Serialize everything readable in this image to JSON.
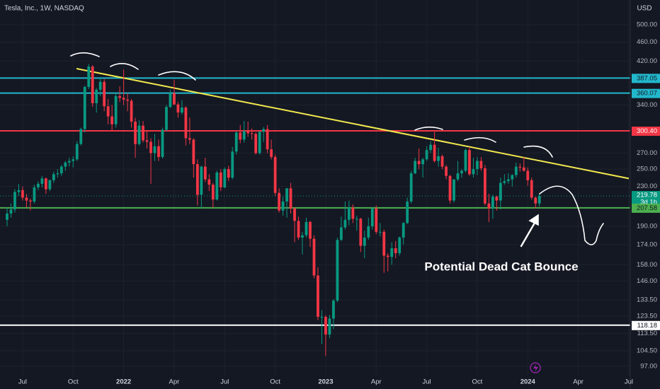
{
  "chart_data": {
    "type": "candlestick",
    "title": "Tesla, Inc., 1W, NASDAQ",
    "currency": "USD",
    "countdown": "3d 1h",
    "annotation": "Potential Dead Cat Bounce",
    "log_scale": true,
    "grid": true,
    "up_color": "#089981",
    "down_color": "#f23645",
    "categories": [
      null,
      null,
      null,
      null,
      "Jul",
      null,
      null,
      null,
      null,
      null,
      null,
      null,
      null,
      null,
      null,
      null,
      null,
      "Oct",
      null,
      null,
      null,
      null,
      null,
      null,
      null,
      null,
      null,
      null,
      null,
      null,
      "2022",
      null,
      null,
      null,
      null,
      null,
      null,
      null,
      null,
      null,
      null,
      null,
      null,
      "Apr",
      null,
      null,
      null,
      null,
      null,
      null,
      null,
      null,
      null,
      null,
      null,
      null,
      "Jul",
      null,
      null,
      null,
      null,
      null,
      null,
      null,
      null,
      null,
      null,
      null,
      null,
      "Oct",
      null,
      null,
      null,
      null,
      null,
      null,
      null,
      null,
      null,
      null,
      null,
      null,
      "2023",
      null,
      null,
      null,
      null,
      null,
      null,
      null,
      null,
      null,
      null,
      null,
      null,
      "Apr",
      null,
      null,
      null,
      null,
      null,
      null,
      null,
      null,
      null,
      null,
      null,
      null,
      "Jul",
      null,
      null,
      null,
      null,
      null,
      null,
      null,
      null,
      null,
      null,
      null,
      null,
      "Oct",
      null,
      null,
      null,
      null,
      null,
      null,
      null,
      null,
      null,
      null,
      null,
      null,
      "2024",
      null,
      null,
      null,
      null,
      null,
      null,
      null,
      null,
      null,
      null,
      null,
      null,
      "Apr",
      null,
      null,
      null,
      null,
      null,
      null,
      null,
      null,
      null,
      null,
      null,
      null,
      "Jul"
    ],
    "open": [
      196,
      202,
      206,
      224,
      226,
      218,
      215,
      214,
      229,
      233,
      239,
      227,
      237,
      244,
      245,
      253,
      258,
      260,
      262,
      282,
      303,
      371,
      409,
      343,
      366,
      380,
      338,
      322,
      310,
      355,
      352,
      349,
      347,
      314,
      282,
      308,
      287,
      285,
      270,
      279,
      265,
      302,
      337,
      360,
      341,
      328,
      336,
      290,
      288,
      256,
      221,
      253,
      238,
      232,
      216,
      246,
      229,
      250,
      240,
      272,
      298,
      288,
      300,
      297,
      296,
      270,
      299,
      303,
      275,
      265,
      223,
      205,
      214,
      228,
      207,
      195,
      180,
      182,
      194,
      179,
      150,
      123,
      123,
      113,
      122,
      133,
      178,
      189,
      196,
      208,
      197,
      197,
      173,
      180,
      190,
      207,
      185,
      185,
      165,
      164,
      171,
      167,
      180,
      193,
      214,
      245,
      260,
      256,
      262,
      274,
      281,
      260,
      266,
      253,
      242,
      215,
      238,
      245,
      248,
      274,
      244,
      250,
      260,
      251,
      212,
      207,
      219,
      215,
      234,
      236,
      238,
      243,
      253,
      252,
      248,
      237,
      218,
      212,
      null,
      null,
      null,
      null,
      null,
      null,
      null,
      null,
      null,
      null,
      null,
      null,
      null,
      null,
      null,
      null,
      null,
      null,
      null,
      null,
      null,
      null,
      null
    ],
    "high": [
      208,
      212,
      227,
      233,
      230,
      222,
      217,
      232,
      236,
      242,
      240,
      238,
      247,
      250,
      255,
      260,
      264,
      266,
      286,
      305,
      373,
      414,
      412,
      369,
      389,
      385,
      350,
      340,
      360,
      372,
      403,
      360,
      350,
      320,
      316,
      315,
      300,
      290,
      296,
      288,
      305,
      340,
      366,
      384,
      345,
      348,
      338,
      320,
      290,
      262,
      254,
      264,
      244,
      234,
      248,
      250,
      252,
      254,
      278,
      300,
      309,
      315,
      314,
      304,
      298,
      300,
      306,
      309,
      288,
      268,
      228,
      219,
      228,
      234,
      208,
      199,
      185,
      198,
      195,
      182,
      156,
      127,
      124,
      124,
      134,
      180,
      199,
      214,
      215,
      211,
      200,
      198,
      186,
      198,
      208,
      210,
      193,
      187,
      167,
      176,
      177,
      181,
      194,
      218,
      248,
      264,
      276,
      264,
      279,
      286,
      299,
      277,
      268,
      255,
      243,
      238,
      260,
      250,
      276,
      278,
      264,
      265,
      265,
      255,
      222,
      221,
      220,
      240,
      244,
      245,
      244,
      258,
      257,
      265,
      252,
      240,
      219,
      222,
      null,
      null,
      null,
      null,
      null,
      null,
      null,
      null,
      null,
      null,
      null,
      null,
      null,
      null,
      null,
      null,
      null,
      null,
      null,
      null,
      null,
      null,
      null
    ],
    "low": [
      190,
      198,
      203,
      220,
      215,
      208,
      205,
      212,
      226,
      229,
      222,
      225,
      234,
      240,
      242,
      248,
      253,
      252,
      260,
      280,
      298,
      367,
      337,
      328,
      355,
      330,
      310,
      300,
      305,
      345,
      340,
      330,
      305,
      264,
      280,
      284,
      276,
      233,
      260,
      260,
      263,
      300,
      335,
      340,
      320,
      325,
      280,
      282,
      240,
      210,
      207,
      235,
      225,
      208,
      215,
      225,
      228,
      236,
      238,
      268,
      283,
      284,
      292,
      288,
      268,
      268,
      285,
      270,
      262,
      220,
      203,
      200,
      198,
      202,
      176,
      178,
      166,
      180,
      172,
      148,
      121,
      108,
      102,
      111,
      116,
      132,
      177,
      187,
      191,
      193,
      186,
      168,
      163,
      178,
      187,
      183,
      181,
      152,
      153,
      158,
      163,
      165,
      174,
      192,
      212,
      244,
      250,
      240,
      260,
      270,
      258,
      253,
      250,
      238,
      212,
      213,
      236,
      240,
      246,
      242,
      240,
      243,
      248,
      210,
      194,
      197,
      205,
      206,
      232,
      233,
      230,
      240,
      247,
      247,
      231,
      216,
      207,
      209,
      null,
      null,
      null,
      null,
      null,
      null,
      null,
      null,
      null,
      null,
      null,
      null,
      null,
      null,
      null,
      null,
      null,
      null,
      null,
      null,
      null,
      null,
      null
    ],
    "close": [
      202,
      206,
      224,
      226,
      218,
      215,
      214,
      229,
      233,
      239,
      227,
      237,
      244,
      245,
      253,
      258,
      260,
      262,
      282,
      303,
      371,
      409,
      343,
      366,
      380,
      338,
      322,
      310,
      355,
      352,
      349,
      347,
      314,
      282,
      308,
      287,
      285,
      270,
      279,
      265,
      302,
      337,
      360,
      341,
      328,
      336,
      290,
      288,
      256,
      221,
      253,
      238,
      232,
      216,
      246,
      229,
      250,
      240,
      272,
      298,
      288,
      300,
      297,
      296,
      270,
      299,
      303,
      275,
      265,
      223,
      205,
      214,
      228,
      207,
      195,
      180,
      182,
      194,
      179,
      150,
      123,
      123,
      113,
      122,
      133,
      178,
      189,
      196,
      208,
      197,
      197,
      173,
      180,
      190,
      207,
      185,
      185,
      165,
      164,
      171,
      167,
      180,
      193,
      214,
      245,
      260,
      256,
      262,
      274,
      281,
      260,
      266,
      253,
      242,
      215,
      238,
      245,
      248,
      274,
      244,
      250,
      260,
      251,
      212,
      207,
      219,
      215,
      234,
      236,
      238,
      243,
      253,
      252,
      248,
      237,
      218,
      212,
      219.78,
      null,
      null,
      null,
      null,
      null,
      null,
      null,
      null,
      null,
      null,
      null,
      null,
      null,
      null,
      null,
      null,
      null,
      null,
      null,
      null,
      null,
      null,
      null
    ],
    "ylim": [
      87,
      563
    ],
    "yticks": [
      {
        "value": 97,
        "label": "97.00"
      },
      {
        "value": 104.5,
        "label": "104.50"
      },
      {
        "value": 113.5,
        "label": "113.50"
      },
      {
        "value": 123.5,
        "label": "123.50"
      },
      {
        "value": 133.5,
        "label": "133.50"
      },
      {
        "value": 146,
        "label": "146.00"
      },
      {
        "value": 158,
        "label": "158.00"
      },
      {
        "value": 174,
        "label": "174.00"
      },
      {
        "value": 190,
        "label": "190.00"
      },
      {
        "value": 230,
        "label": "230.00"
      },
      {
        "value": 250,
        "label": "250.00"
      },
      {
        "value": 270,
        "label": "270.00"
      },
      {
        "value": 340,
        "label": "340.00"
      },
      {
        "value": 420,
        "label": "420.00"
      },
      {
        "value": 460,
        "label": "460.00"
      },
      {
        "value": 500,
        "label": "500.00"
      }
    ],
    "levels": [
      {
        "value": 387.05,
        "color": "#22b8cc",
        "text_color": "#131722"
      },
      {
        "value": 360.07,
        "color": "#22b8cc",
        "text_color": "#131722"
      },
      {
        "value": 300.4,
        "label": "300.40",
        "color": "#f23645",
        "text_color": "#ffffff"
      },
      {
        "value": 207.58,
        "color": "#4caf50",
        "text_color": "#131722"
      },
      {
        "value": 118.18,
        "color": "#ffffff",
        "text_color": "#131722"
      }
    ],
    "trendline": {
      "values": [
        405,
        239
      ],
      "color": "#f2e94e"
    }
  }
}
